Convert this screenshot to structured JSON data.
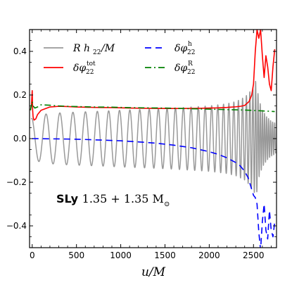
{
  "chart_data": {
    "type": "line",
    "xlabel": "u/M",
    "ylabel": "",
    "title": "",
    "xlim": [
      -30,
      2760
    ],
    "ylim": [
      -0.5,
      0.5
    ],
    "xticks": [
      0,
      500,
      1000,
      1500,
      2000,
      2500
    ],
    "yticks": [
      -0.4,
      -0.2,
      0.0,
      0.2,
      0.4
    ],
    "xtick_labels": [
      "0",
      "500",
      "1000",
      "1500",
      "2000",
      "2500"
    ],
    "ytick_labels": [
      "−0.4",
      "−0.2",
      "0.0",
      "0.2",
      "0.4"
    ],
    "grid": false,
    "legend_position": "top",
    "annotation": {
      "bold": "SLy",
      "text": "1.35 + 1.35 M",
      "subscript": "⊙"
    },
    "series": [
      {
        "name": "R h22/M",
        "legend_main": "R h",
        "legend_sub": "22",
        "legend_tail": "/M",
        "color": "#999999",
        "style": "solid",
        "envelope_x": [
          -10,
          0,
          50,
          100,
          200,
          400,
          600,
          800,
          1000,
          1200,
          1400,
          1600,
          1800,
          2000,
          2100,
          2200,
          2300,
          2400,
          2450,
          2500,
          2530,
          2560,
          2600,
          2650,
          2700,
          2750
        ],
        "envelope_amp": [
          0.09,
          0.1,
          0.1,
          0.11,
          0.115,
          0.12,
          0.123,
          0.126,
          0.13,
          0.133,
          0.136,
          0.14,
          0.145,
          0.15,
          0.155,
          0.16,
          0.17,
          0.19,
          0.21,
          0.24,
          0.27,
          0.18,
          0.13,
          0.1,
          0.08,
          0.07
        ],
        "envelope_period": [
          175,
          175,
          170,
          165,
          158,
          147,
          138,
          128,
          119,
          110,
          102,
          93,
          84,
          73,
          67,
          60,
          52,
          43,
          38,
          32,
          28,
          25,
          24,
          23,
          23,
          23
        ]
      },
      {
        "name": "δφ22 tot",
        "legend_main": "δφ",
        "legend_sub": "22",
        "legend_sup": "tot",
        "color": "#ff0000",
        "style": "solid",
        "x": [
          -20,
          -10,
          -5,
          0,
          5,
          10,
          20,
          40,
          60,
          100,
          200,
          300,
          400,
          500,
          700,
          900,
          1100,
          1300,
          1500,
          1700,
          1900,
          2000,
          2100,
          2200,
          2300,
          2350,
          2400,
          2450,
          2480,
          2500,
          2520,
          2540,
          2560,
          2580,
          2600,
          2620,
          2640,
          2660,
          2680,
          2700,
          2720,
          2740
        ],
        "y": [
          0.13,
          0.15,
          0.18,
          0.22,
          0.13,
          0.1,
          0.085,
          0.09,
          0.11,
          0.13,
          0.145,
          0.148,
          0.147,
          0.145,
          0.143,
          0.142,
          0.14,
          0.139,
          0.138,
          0.138,
          0.139,
          0.14,
          0.141,
          0.143,
          0.146,
          0.148,
          0.152,
          0.17,
          0.2,
          0.25,
          0.4,
          0.5,
          0.46,
          0.5,
          0.38,
          0.28,
          0.38,
          0.33,
          0.25,
          0.22,
          0.33,
          0.41
        ]
      },
      {
        "name": "δφ22 h",
        "legend_main": "δφ",
        "legend_sub": "22",
        "legend_sup": "h",
        "color": "#0000ff",
        "style": "dashed",
        "x": [
          0,
          200,
          400,
          600,
          800,
          1000,
          1200,
          1400,
          1600,
          1800,
          2000,
          2100,
          2200,
          2300,
          2350,
          2400,
          2440,
          2470,
          2500,
          2520,
          2540,
          2560,
          2580,
          2600,
          2620,
          2640,
          2660,
          2680,
          2700,
          2720,
          2740
        ],
        "y": [
          0.0,
          -0.001,
          -0.002,
          -0.004,
          -0.007,
          -0.01,
          -0.015,
          -0.021,
          -0.03,
          -0.042,
          -0.06,
          -0.072,
          -0.088,
          -0.11,
          -0.125,
          -0.15,
          -0.18,
          -0.22,
          -0.26,
          -0.27,
          -0.3,
          -0.43,
          -0.51,
          -0.38,
          -0.3,
          -0.42,
          -0.46,
          -0.33,
          -0.42,
          -0.45,
          -0.38
        ]
      },
      {
        "name": "δφ22 R",
        "legend_main": "δφ",
        "legend_sub": "22",
        "legend_sup": "R",
        "color": "#008000",
        "style": "dashdot",
        "x": [
          -20,
          -10,
          0,
          10,
          30,
          60,
          100,
          200,
          300,
          400,
          500,
          700,
          900,
          1100,
          1300,
          1500,
          1700,
          1900,
          2100,
          2300,
          2400,
          2500,
          2600,
          2700,
          2740
        ],
        "y": [
          0.13,
          0.15,
          0.17,
          0.15,
          0.14,
          0.145,
          0.155,
          0.153,
          0.15,
          0.148,
          0.147,
          0.145,
          0.144,
          0.142,
          0.141,
          0.14,
          0.138,
          0.136,
          0.134,
          0.132,
          0.131,
          0.129,
          0.127,
          0.125,
          0.124
        ]
      }
    ]
  }
}
